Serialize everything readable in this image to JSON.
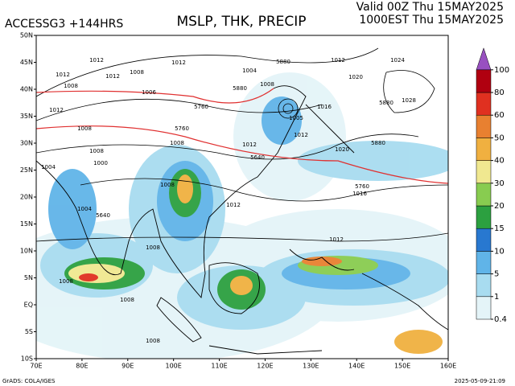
{
  "header": {
    "model": "ACCESSG3 +144HRS",
    "title": "MSLP, THK, PRECIP",
    "valid": "Valid 00Z Thu 15MAY2025",
    "local": "1000EST Thu 15MAY2025"
  },
  "map": {
    "xlim": [
      70,
      160
    ],
    "ylim": [
      -10,
      50
    ],
    "xticks": [
      {
        "value": 70,
        "label": "70E"
      },
      {
        "value": 80,
        "label": "80E"
      },
      {
        "value": 90,
        "label": "90E"
      },
      {
        "value": 100,
        "label": "100E"
      },
      {
        "value": 110,
        "label": "110E"
      },
      {
        "value": 120,
        "label": "120E"
      },
      {
        "value": 130,
        "label": "130E"
      },
      {
        "value": 140,
        "label": "140E"
      },
      {
        "value": 150,
        "label": "150E"
      },
      {
        "value": 160,
        "label": "160E"
      }
    ],
    "yticks": [
      {
        "value": 50,
        "label": "50N"
      },
      {
        "value": 45,
        "label": "45N"
      },
      {
        "value": 40,
        "label": "40N"
      },
      {
        "value": 35,
        "label": "35N"
      },
      {
        "value": 30,
        "label": "30N"
      },
      {
        "value": 25,
        "label": "25N"
      },
      {
        "value": 20,
        "label": "20N"
      },
      {
        "value": 15,
        "label": "15N"
      },
      {
        "value": 10,
        "label": "10N"
      },
      {
        "value": 5,
        "label": "5N"
      },
      {
        "value": 0,
        "label": "EQ"
      },
      {
        "value": -5,
        "label": "5S"
      },
      {
        "value": -10,
        "label": "10S"
      }
    ],
    "contour_labels": [
      "1012",
      "1012",
      "1008",
      "1012",
      "1012",
      "1008",
      "1006",
      "1004",
      "1008",
      "1012",
      "1008",
      "1008",
      "1000",
      "1004",
      "1008",
      "1012",
      "1005",
      "1012",
      "1016",
      "1020",
      "1016",
      "1012",
      "1008",
      "1004",
      "1012",
      "1008",
      "1008",
      "1008",
      "1008",
      "1012",
      "1024",
      "1028",
      "1020",
      "5880",
      "5880",
      "5880",
      "5880",
      "5760",
      "5760",
      "5760",
      "5640",
      "5640"
    ]
  },
  "colorbar": {
    "levels": [
      0.4,
      1,
      5,
      10,
      15,
      20,
      30,
      40,
      50,
      60,
      80,
      100
    ],
    "colors": [
      "#e4f4f8",
      "#a8dcf0",
      "#60b4e8",
      "#2878d0",
      "#2ca040",
      "#88cc50",
      "#f0e890",
      "#f0b040",
      "#e88030",
      "#e03020",
      "#b00010",
      "#9850c0"
    ]
  },
  "footer": {
    "credit": "GrADS: COLA/IGES",
    "stamp": "2025-05-09-21:09"
  }
}
